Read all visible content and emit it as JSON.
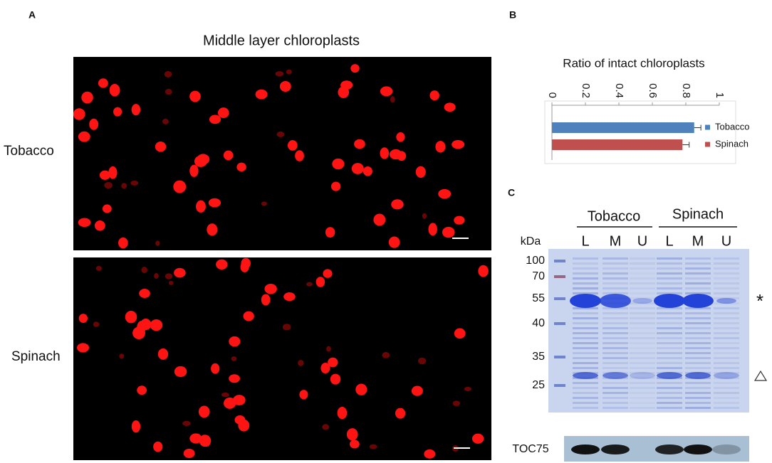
{
  "panel_a": {
    "label": "A",
    "title": "Middle layer chloroplasts",
    "rows": [
      "Tobacco",
      "Spinach"
    ]
  },
  "chart_data": {
    "type": "bar",
    "orientation": "horizontal",
    "panel_label": "B",
    "title": "Ratio of intact chloroplasts",
    "categories": [
      "Tobacco",
      "Spinach"
    ],
    "values": [
      0.85,
      0.78
    ],
    "errors": [
      0.04,
      0.04
    ],
    "colors": [
      "#4f81bd",
      "#c0504d"
    ],
    "xlim": [
      0,
      1
    ],
    "xticks": [
      0,
      0.2,
      0.4,
      0.6,
      0.8,
      1
    ],
    "legend": "right"
  },
  "panel_c": {
    "label": "C",
    "groups": [
      "Tobacco",
      "Spinach"
    ],
    "lanes": [
      "L",
      "M",
      "U",
      "L",
      "M",
      "U"
    ],
    "unit": "kDa",
    "markers": [
      "100",
      "70",
      "55",
      "40",
      "35",
      "25"
    ],
    "asterisk": "*",
    "blot_label": "TOC75"
  }
}
